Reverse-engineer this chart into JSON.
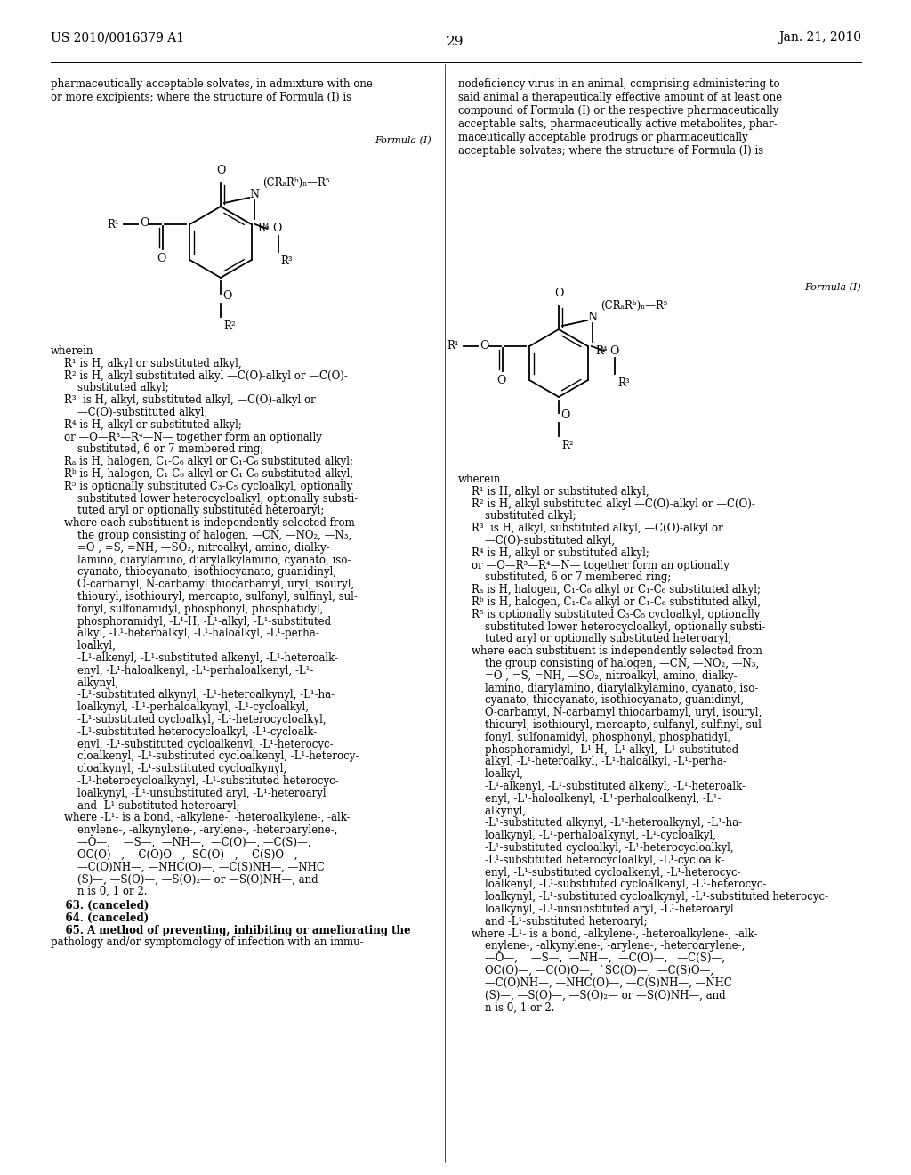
{
  "page_number": "29",
  "patent_number": "US 2010/0016379 A1",
  "patent_date": "Jan. 21, 2010",
  "bg_color": "#ffffff",
  "text_color": "#000000",
  "left_intro": "pharmaceutically acceptable solvates, in admixture with one\nor more excipients; where the structure of Formula (I) is",
  "right_intro": "nodeficiency virus in an animal, comprising administering to\nsaid animal a therapeutically effective amount of at least one\ncompound of Formula (I) or the respective pharmaceutically\nacceptable salts, pharmaceutically active metabolites, phar-\nmaceutically acceptable prodrugs or pharmaceutically\nacceptable solvates; where the structure of Formula (I) is",
  "formula_label": "Formula (I)",
  "wherein_lines_left": [
    "wherein",
    "    R¹ is H, alkyl or substituted alkyl,",
    "    R² is H, alkyl substituted alkyl —C(O)-alkyl or —C(O)-",
    "        substituted alkyl;",
    "    R³  is H, alkyl, substituted alkyl, —C(O)-alkyl or",
    "        —C(O)-substituted alkyl,",
    "    R⁴ is H, alkyl or substituted alkyl;",
    "    or —O—R³—R⁴—N— together form an optionally",
    "        substituted, 6 or 7 membered ring;",
    "    Rₐ is H, halogen, C₁-C₆ alkyl or C₁-C₆ substituted alkyl;",
    "    Rᵇ is H, halogen, C₁-C₆ alkyl or C₁-C₆ substituted alkyl,",
    "    R⁵ is optionally substituted C₃-C₅ cycloalkyl, optionally",
    "        substituted lower heterocycloalkyl, optionally substi-",
    "        tuted aryl or optionally substituted heteroaryl;",
    "    where each substituent is independently selected from",
    "        the group consisting of halogen, —CN, —NO₂, —N₃,",
    "        =O , =S, =NH, —SO₂, nitroalkyl, amino, dialky-",
    "        lamino, diarylamino, diarylalkylamino, cyanato, iso-",
    "        cyanato, thiocyanato, isothiocyanato, guanidinyl,",
    "        O-carbamyl, N-carbamyl thiocarbamyl, uryl, isouryl,",
    "        thiouryl, isothiouryl, mercapto, sulfanyl, sulfinyl, sul-",
    "        fonyl, sulfonamidyl, phosphonyl, phosphatidyl,",
    "        phosphoramidyl, -L¹-H, -L¹-alkyl, -L¹-substituted",
    "        alkyl, -L¹-heteroalkyl, -L¹-haloalkyl, -L¹-perha-",
    "        loalkyl,",
    "        -L¹-alkenyl, -L¹-substituted alkenyl, -L¹-heteroalk-",
    "        enyl, -L¹-haloalkenyl, -L¹-perhaloalkenyl, -L¹-",
    "        alkynyl,",
    "        -L¹-substituted alkynyl, -L¹-heteroalkynyl, -L¹-ha-",
    "        loalkynyl, -L¹-perhaloalkynyl, -L¹-cycloalkyl,",
    "        -L¹-substituted cycloalkyl, -L¹-heterocycloalkyl,",
    "        -L¹-substituted heterocycloalkyl, -L¹-cycloalk-",
    "        enyl, -L¹-substituted cycloalkenyl, -L¹-heterocyc-",
    "        cloalkenyl, -L¹-substituted cycloalkenyl, -L¹-heterocy-",
    "        cloalkynyl, -L¹-substituted cycloalkynyl,",
    "        -L¹-heterocycloalkynyl, -L¹-substituted heterocyc-",
    "        loalkynyl, -L¹-unsubstituted aryl, -L¹-heteroaryl",
    "        and -L¹-substituted heteroaryl;",
    "    where -L¹- is a bond, -alkylene-, -heteroalkylene-, -alk-",
    "        enylene-, -alkynylene-, -arylene-, -heteroarylene-,",
    "        —O—,    —S—,  —NH—,  —C(O)—, —C(S)—,",
    "        OC(O)—, —C(O)O—,  SC(O)—, —C(S)O—,",
    "        —C(O)NH—, —NHC(O)—, —C(S)NH—, —NHC",
    "        (S)—, —S(O)—, —S(O)₂— or —S(O)NH—, and",
    "        n is 0, 1 or 2."
  ],
  "bottom_lines_left": [
    "    63. (canceled)",
    "    64. (canceled)",
    "    65. A method of preventing, inhibiting or ameliorating the",
    "pathology and/or symptomology of infection with an immu-"
  ],
  "wherein_lines_right": [
    "wherein",
    "    R¹ is H, alkyl or substituted alkyl,",
    "    R² is H, alkyl substituted alkyl —C(O)-alkyl or —C(O)-",
    "        substituted alkyl;",
    "    R³  is H, alkyl, substituted alkyl, —C(O)-alkyl or",
    "        —C(O)-substituted alkyl,",
    "    R⁴ is H, alkyl or substituted alkyl;",
    "    or —O—R³—R⁴—N— together form an optionally",
    "        substituted, 6 or 7 membered ring;",
    "    Rₐ is H, halogen, C₁-C₆ alkyl or C₁-C₆ substituted alkyl;",
    "    Rᵇ is H, halogen, C₁-C₆ alkyl or C₁-C₆ substituted alkyl,",
    "    R⁵ is optionally substituted C₃-C₅ cycloalkyl, optionally",
    "        substituted lower heterocycloalkyl, optionally substi-",
    "        tuted aryl or optionally substituted heteroaryl;",
    "    where each substituent is independently selected from",
    "        the group consisting of halogen, —CN, —NO₂, —N₃,",
    "        =O , =S, =NH, —SO₂, nitroalkyl, amino, dialky-",
    "        lamino, diarylamino, diarylalkylamino, cyanato, iso-",
    "        cyanato, thiocyanato, isothiocyanato, guanidinyl,",
    "        O-carbamyl, N-carbamyl thiocarbamyl, uryl, isouryl,",
    "        thiouryl, isothiouryl, mercapto, sulfanyl, sulfinyl, sul-",
    "        fonyl, sulfonamidyl, phosphonyl, phosphatidyl,",
    "        phosphoramidyl, -L¹-H, -L¹-alkyl, -L¹-substituted",
    "        alkyl, -L¹-heteroalkyl, -L¹-haloalkyl, -L¹-perha-",
    "        loalkyl,",
    "        -L¹-alkenyl, -L¹-substituted alkenyl, -L¹-heteroalk-",
    "        enyl, -L¹-haloalkenyl, -L¹-perhaloalkenyl, -L¹-",
    "        alkynyl,",
    "        -L¹-substituted alkynyl, -L¹-heteroalkynyl, -L¹-ha-",
    "        loalkynyl, -L¹-perhaloalkynyl, -L¹-cycloalkyl,",
    "        -L¹-substituted cycloalkyl, -L¹-heterocycloalkyl,",
    "        -L¹-substituted heterocycloalkyl, -L¹-cycloalk-",
    "        enyl, -L¹-substituted cycloalkenyl, -L¹-heterocyc-",
    "        loalkenyl, -L¹-substituted cycloalkenyl, -L¹-heterocyc-",
    "        loalkynyl, -L¹-substituted cycloalkynyl, -L¹-substituted heterocyc-",
    "        loalkynyl, -L¹-unsubstituted aryl, -L¹-heteroaryl",
    "        and -L¹-substituted heteroaryl;",
    "    where -L¹- is a bond, -alkylene-, -heteroalkylene-, -alk-",
    "        enylene-, -alkynylene-, -arylene-, -heteroarylene-,",
    "        —O—,    —S—,  —NH—,  —C(O)—,   —C(S)—,",
    "        OC(O)—, —C(O)O—,  `SC(O)—,  —C(S)O—,",
    "        —C(O)NH—, —NHC(O)—, —C(S)NH—, —NHC",
    "        (S)—, —S(O)—, —S(O)₂— or —S(O)NH—, and",
    "        n is 0, 1 or 2."
  ]
}
